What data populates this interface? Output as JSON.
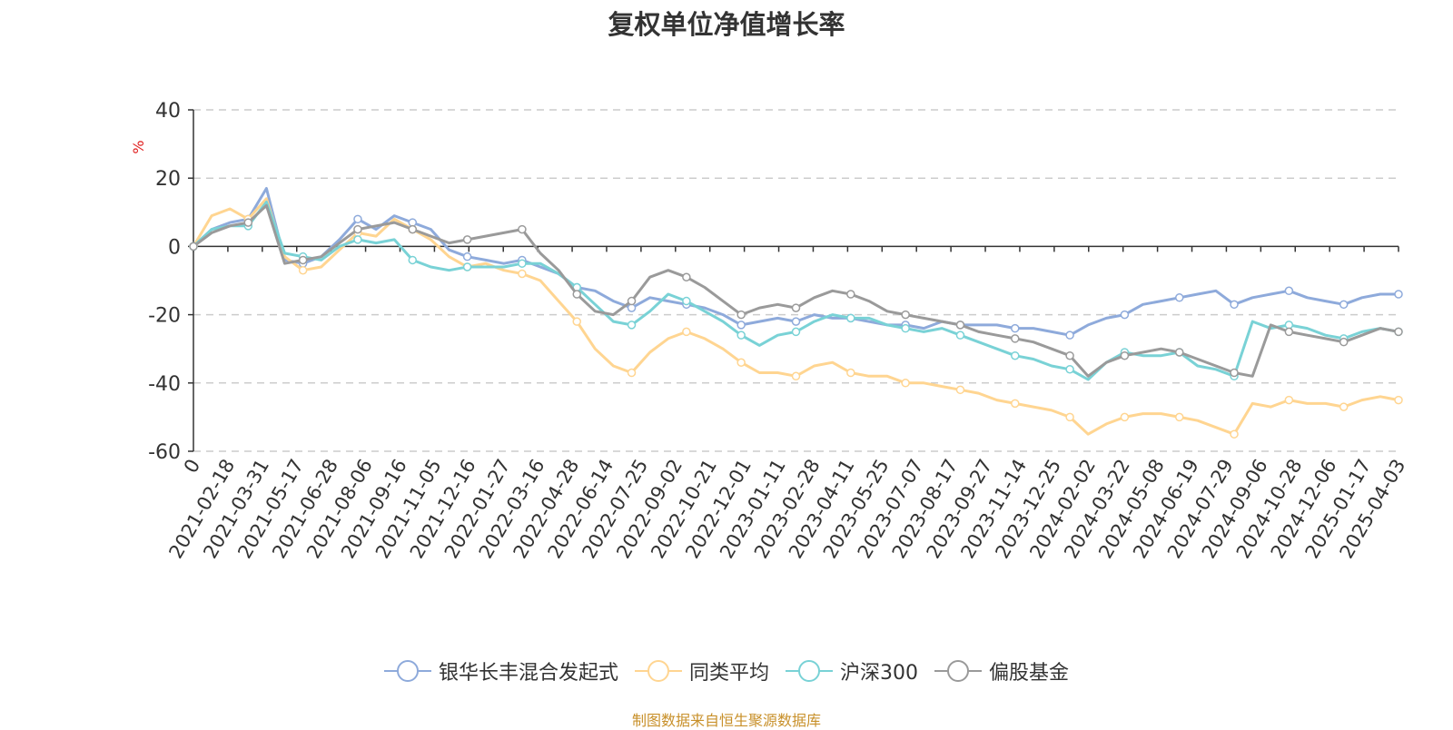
{
  "chart_data": {
    "type": "line",
    "title": "复权单位净值增长率",
    "ylabel": "%",
    "ylim": [
      -60,
      40
    ],
    "yticks": [
      40,
      20,
      0,
      -20,
      -40,
      -60
    ],
    "x_tick_labels": [
      "0",
      "2021-02-18",
      "2021-03-31",
      "2021-05-17",
      "2021-06-28",
      "2021-08-06",
      "2021-09-16",
      "2021-11-05",
      "2021-12-16",
      "2022-01-27",
      "2022-03-16",
      "2022-04-28",
      "2022-06-14",
      "2022-07-25",
      "2022-09-02",
      "2022-10-21",
      "2022-12-01",
      "2023-01-11",
      "2023-02-28",
      "2023-04-11",
      "2023-05-25",
      "2023-07-07",
      "2023-08-17",
      "2023-09-27",
      "2023-11-14",
      "2023-12-25",
      "2024-02-02",
      "2024-03-22",
      "2024-05-08",
      "2024-06-19",
      "2024-07-29",
      "2024-09-06",
      "2024-10-28",
      "2024-12-06",
      "2025-01-17",
      "2025-04-03"
    ],
    "grid": true,
    "legend_position": "bottom",
    "series": [
      {
        "name": "银华长丰混合发起式",
        "color": "#8eaadb",
        "values": [
          0,
          5,
          7,
          8,
          17,
          -4,
          -5,
          -3,
          2,
          8,
          5,
          9,
          7,
          5,
          -1,
          -3,
          -4,
          -5,
          -4,
          -6,
          -8,
          -12,
          -13,
          -16,
          -18,
          -15,
          -16,
          -17,
          -18,
          -20,
          -23,
          -22,
          -21,
          -22,
          -20,
          -21,
          -21,
          -22,
          -23,
          -23,
          -24,
          -22,
          -23,
          -23,
          -23,
          -24,
          -24,
          -25,
          -26,
          -23,
          -21,
          -20,
          -17,
          -16,
          -15,
          -14,
          -13,
          -17,
          -15,
          -14,
          -13,
          -15,
          -16,
          -17,
          -15,
          -14,
          -14
        ]
      },
      {
        "name": "同类平均",
        "color": "#ffd591",
        "values": [
          0,
          9,
          11,
          8,
          14,
          -3,
          -7,
          -6,
          -1,
          4,
          3,
          8,
          5,
          2,
          -3,
          -6,
          -5,
          -7,
          -8,
          -10,
          -16,
          -22,
          -30,
          -35,
          -37,
          -31,
          -27,
          -25,
          -27,
          -30,
          -34,
          -37,
          -37,
          -38,
          -35,
          -34,
          -37,
          -38,
          -38,
          -40,
          -40,
          -41,
          -42,
          -43,
          -45,
          -46,
          -47,
          -48,
          -50,
          -55,
          -52,
          -50,
          -49,
          -49,
          -50,
          -51,
          -53,
          -55,
          -46,
          -47,
          -45,
          -46,
          -46,
          -47,
          -45,
          -44,
          -45
        ]
      },
      {
        "name": "沪深300",
        "color": "#79d2d6",
        "values": [
          0,
          5,
          6,
          6,
          13,
          -2,
          -3,
          -4,
          0,
          2,
          1,
          2,
          -4,
          -6,
          -7,
          -6,
          -6,
          -6,
          -5,
          -5,
          -8,
          -12,
          -17,
          -22,
          -23,
          -19,
          -14,
          -16,
          -19,
          -22,
          -26,
          -29,
          -26,
          -25,
          -22,
          -20,
          -21,
          -21,
          -23,
          -24,
          -25,
          -24,
          -26,
          -28,
          -30,
          -32,
          -33,
          -35,
          -36,
          -39,
          -34,
          -31,
          -32,
          -32,
          -31,
          -35,
          -36,
          -38,
          -22,
          -24,
          -23,
          -24,
          -26,
          -27,
          -25,
          -24,
          -25
        ]
      },
      {
        "name": "偏股基金",
        "color": "#9a9a9a",
        "values": [
          0,
          4,
          6,
          7,
          12,
          -5,
          -4,
          -3,
          1,
          5,
          6,
          7,
          5,
          3,
          1,
          2,
          3,
          4,
          5,
          -2,
          -7,
          -14,
          -19,
          -20,
          -16,
          -9,
          -7,
          -9,
          -12,
          -16,
          -20,
          -18,
          -17,
          -18,
          -15,
          -13,
          -14,
          -16,
          -19,
          -20,
          -21,
          -22,
          -23,
          -25,
          -26,
          -27,
          -28,
          -30,
          -32,
          -38,
          -34,
          -32,
          -31,
          -30,
          -31,
          -33,
          -35,
          -37,
          -38,
          -23,
          -25,
          -26,
          -27,
          -28,
          -26,
          -24,
          -25
        ]
      }
    ]
  },
  "legend": [
    {
      "label": "银华长丰混合发起式",
      "color": "#8eaadb"
    },
    {
      "label": "同类平均",
      "color": "#ffd591"
    },
    {
      "label": "沪深300",
      "color": "#79d2d6"
    },
    {
      "label": "偏股基金",
      "color": "#9a9a9a"
    }
  ],
  "footer": {
    "source": "制图数据来自恒生聚源数据库"
  }
}
